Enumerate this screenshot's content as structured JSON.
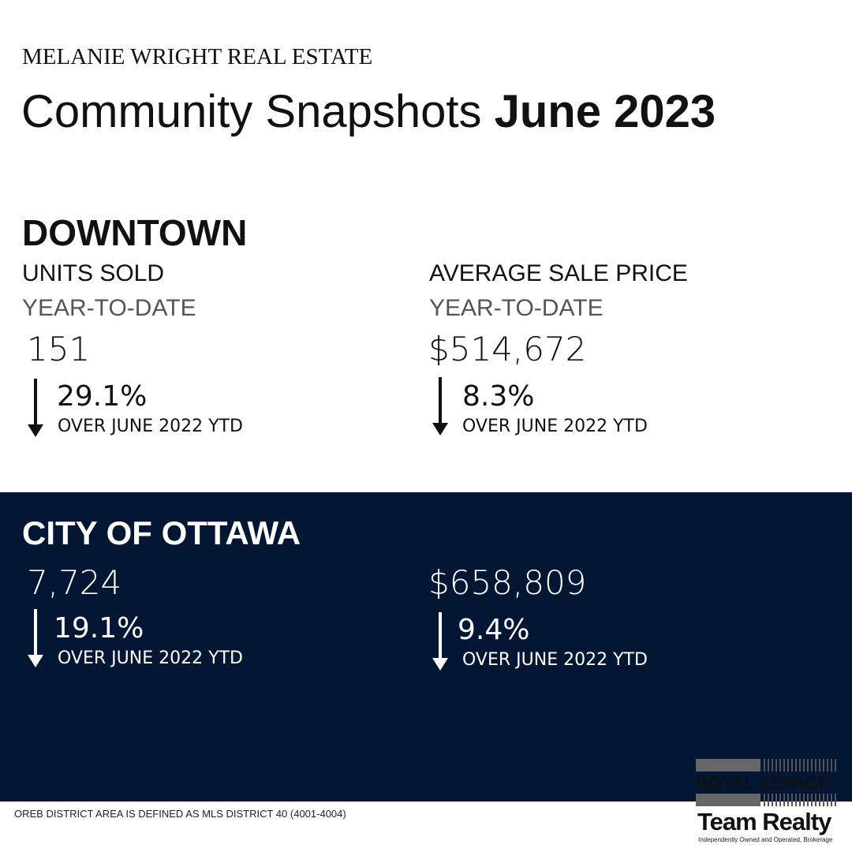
{
  "header": {
    "brand": "MELANIE WRIGHT REAL ESTATE",
    "title_regular": "Community Snapshots",
    "title_bold": "June 2023"
  },
  "downtown": {
    "name": "DOWNTOWN",
    "units": {
      "label": "UNITS SOLD",
      "sublabel": "YEAR-TO-DATE",
      "value": "151",
      "change": "29.1%",
      "direction": "down",
      "comparison": "OVER JUNE 2022 YTD"
    },
    "price": {
      "label": "AVERAGE SALE PRICE",
      "sublabel": "YEAR-TO-DATE",
      "value": "$514,672",
      "change": "8.3%",
      "direction": "down",
      "comparison": "OVER JUNE 2022 YTD"
    }
  },
  "ottawa": {
    "name": "CITY OF OTTAWA",
    "units": {
      "value": "7,724",
      "change": "19.1%",
      "direction": "down",
      "comparison": "OVER JUNE 2022 YTD"
    },
    "price": {
      "value": "$658,809",
      "change": "9.4%",
      "direction": "down",
      "comparison": "OVER JUNE 2022 YTD"
    }
  },
  "footnote": "OREB DISTRICT AREA IS DEFINED AS MLS DISTRICT 40 (4001-4004)",
  "logo": {
    "name": "ROYAL LEPAGE",
    "team": "Team Realty",
    "tagline": "Independently Owned and Operated, Brokerage"
  },
  "colors": {
    "panel_bg": "#031633",
    "text_dark": "#111111",
    "text_light": "#ffffff"
  }
}
